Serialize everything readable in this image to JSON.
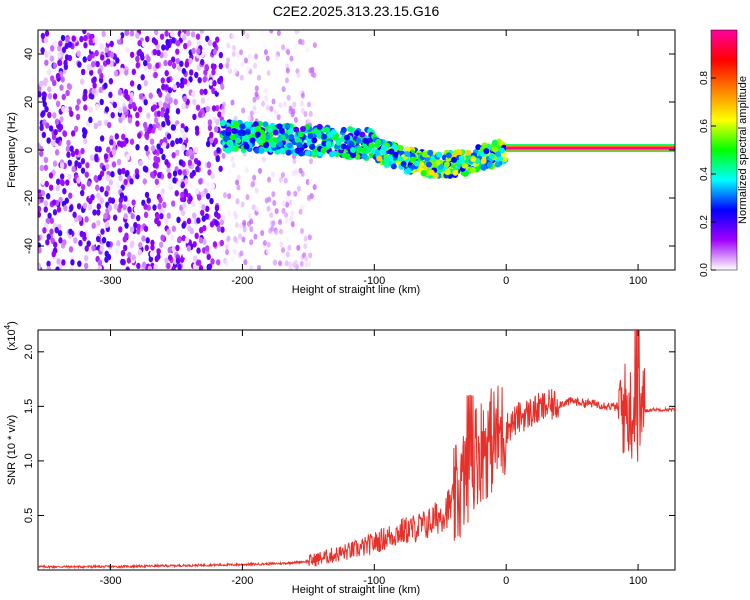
{
  "figure": {
    "title": "C2E2.2025.313.23.15.G16"
  },
  "chart_data": [
    {
      "type": "heatmap",
      "xlabel": "Height of straight line (km)",
      "ylabel": "Frequency (Hz)",
      "xlim": [
        -355,
        128
      ],
      "ylim": [
        -50,
        50
      ],
      "xticks": [
        -300,
        -200,
        -100,
        0,
        100
      ],
      "yticks": [
        -40,
        -20,
        0,
        20,
        40
      ],
      "colorbar": {
        "label": "Normalized spectral amplitude",
        "range": [
          0,
          1
        ],
        "ticks": [
          "0.0",
          "0.2",
          "0.4",
          "0.6",
          "0.8"
        ],
        "colors": [
          "#ffffff",
          "#a000ff",
          "#0000ff",
          "#00ffff",
          "#00ff00",
          "#ffff00",
          "#ff8000",
          "#ff0000",
          "#ff00a0"
        ]
      },
      "regions": [
        {
          "name": "noise",
          "x": [
            -355,
            -215
          ],
          "y": [
            -50,
            50
          ],
          "amplitude": 0.15
        },
        {
          "name": "faint-noise",
          "x": [
            -215,
            -145
          ],
          "y": [
            -50,
            50
          ],
          "amplitude": 0.06
        },
        {
          "name": "signal-onset",
          "x": [
            -215,
            -100
          ],
          "center_y": 6,
          "spread": 6,
          "amplitude": 0.35
        },
        {
          "name": "signal-converging",
          "x": [
            -100,
            0
          ],
          "center_y": 0,
          "spread": 5,
          "amplitude": 0.45
        },
        {
          "name": "tone",
          "x": [
            0,
            128
          ],
          "center_y": 0.8,
          "spread": 0.8,
          "amplitude": 1.0
        }
      ]
    },
    {
      "type": "line",
      "xlabel": "Height of straight line (km)",
      "ylabel": "SNR (10 * v/v)",
      "scale_label": "(x10",
      "scale_exp": "4",
      "scale_close": ")",
      "xlim": [
        -355,
        128
      ],
      "ylim": [
        0,
        2.2
      ],
      "xticks": [
        -300,
        -200,
        -100,
        0,
        100
      ],
      "yticks": [
        "0.5",
        "1.0",
        "1.5",
        "2.0"
      ],
      "line_color": "#e8302a",
      "series": [
        {
          "x": [
            -355,
            -300,
            -250,
            -200,
            -170,
            -150,
            -130,
            -110,
            -100,
            -90,
            -80,
            -70,
            -60,
            -50,
            -40,
            -35,
            -30,
            -25,
            -20,
            -15,
            -10,
            -5,
            0,
            10,
            20,
            30,
            40,
            50,
            60,
            70,
            80,
            90,
            95,
            100,
            105,
            110,
            128
          ],
          "y": [
            0.03,
            0.03,
            0.04,
            0.05,
            0.06,
            0.08,
            0.14,
            0.2,
            0.25,
            0.3,
            0.35,
            0.38,
            0.42,
            0.5,
            0.62,
            0.72,
            0.9,
            1.05,
            1.1,
            1.15,
            1.2,
            1.25,
            1.3,
            1.4,
            1.45,
            1.5,
            1.52,
            1.55,
            1.53,
            1.52,
            1.5,
            1.48,
            1.45,
            1.42,
            1.46,
            1.47,
            1.47
          ]
        }
      ]
    }
  ]
}
